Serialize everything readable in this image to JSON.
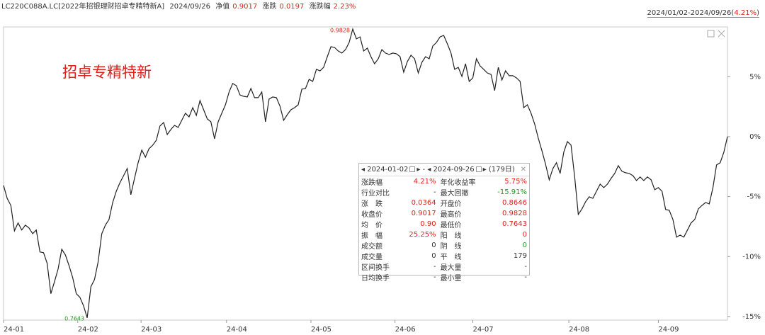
{
  "header": {
    "code": "LC220C088A.LC[2022年招银理财招卓专精特新A]",
    "date": "2024/09/26",
    "nav_label": "净值",
    "nav": "0.9017",
    "change_label": "涨跌",
    "change": "0.0197",
    "pct_label": "涨跌幅",
    "pct": "2.23%",
    "range_prefix": "2024/01/02-2024/09/26(",
    "range_change": "4.21%",
    "range_suffix": ")"
  },
  "chart_data": {
    "type": "line",
    "annotation": "招卓专精特新",
    "max_label": "0.9828",
    "min_label": "0.7643",
    "color": "#222222",
    "values": [
      -4.07,
      -5.14,
      -5.73,
      -7.85,
      -7.2,
      -7.79,
      -7.38,
      -7.61,
      -8.09,
      -7.79,
      -9.62,
      -9.68,
      -10.57,
      -13.1,
      -12.1,
      -11.04,
      -9.39,
      -9.86,
      -10.74,
      -11.75,
      -13.1,
      -13.4,
      -14.11,
      -15.11,
      -12.51,
      -11.92,
      -10.45,
      -8.09,
      -7.38,
      -6.91,
      -5.49,
      -4.55,
      -3.84,
      -3.25,
      -2.66,
      -4.84,
      -3.48,
      -2.18,
      -1.12,
      -1.71,
      -1.0,
      -0.71,
      -0.3,
      0.89,
      1.18,
      0.18,
      0.59,
      0.94,
      0.77,
      1.36,
      1.95,
      1.65,
      2.42,
      1.77,
      3.01,
      2.24,
      1.48,
      1.24,
      -0.18,
      1.24,
      1.95,
      2.66,
      3.72,
      4.43,
      4.25,
      3.48,
      3.36,
      3.31,
      4.01,
      3.25,
      3.25,
      3.72,
      1.24,
      3.13,
      3.31,
      3.25,
      2.54,
      1.36,
      1.83,
      2.24,
      2.42,
      2.66,
      3.96,
      4.01,
      4.78,
      4.6,
      5.61,
      5.49,
      5.78,
      6.67,
      7.5,
      7.44,
      7.14,
      6.97,
      7.26,
      7.85,
      8.97,
      8.15,
      8.32,
      7.14,
      7.38,
      6.67,
      6.08,
      6.49,
      7.26,
      6.97,
      6.85,
      6.97,
      6.91,
      6.67,
      5.37,
      6.26,
      6.79,
      6.49,
      5.31,
      6.2,
      6.67,
      6.49,
      7.56,
      7.85,
      8.32,
      8.44,
      7.73,
      6.97,
      5.61,
      5.78,
      5.02,
      6.08,
      4.6,
      4.9,
      6.49,
      5.9,
      5.61,
      5.31,
      5.19,
      3.84,
      5.78,
      4.72,
      5.49,
      5.08,
      5.08,
      4.9,
      4.6,
      2.42,
      2.66,
      1.95,
      1.06,
      -0.12,
      -1.18,
      -2.3,
      -3.6,
      -2.66,
      -2.18,
      -3.07,
      -1.3,
      -0.41,
      -0.71,
      -3.36,
      -6.49,
      -6.02,
      -5.43,
      -5.02,
      -5.14,
      -4.55,
      -3.96,
      -4.25,
      -3.96,
      -3.48,
      -3.07,
      -2.42,
      -2.89,
      -3.01,
      -3.07,
      -3.25,
      -3.66,
      -3.36,
      -3.66,
      -3.36,
      -3.6,
      -4.43,
      -4.25,
      -4.55,
      -6.08,
      -6.14,
      -6.91,
      -8.38,
      -8.21,
      -8.38,
      -7.79,
      -7.2,
      -6.91,
      -6.02,
      -5.73,
      -5.49,
      -5.61,
      -4.25,
      -2.36,
      -2.18,
      -1.3,
      0.0
    ],
    "xlim": [
      0,
      199
    ],
    "xticks": [
      {
        "value": 0,
        "label": "24-01"
      },
      {
        "value": 20.4,
        "label": "24-02"
      },
      {
        "value": 37.8,
        "label": "24-03"
      },
      {
        "value": 61.3,
        "label": "24-04"
      },
      {
        "value": 84.5,
        "label": "24-05"
      },
      {
        "value": 107.6,
        "label": "24-06"
      },
      {
        "value": 129,
        "label": "24-07"
      },
      {
        "value": 155.4,
        "label": "24-08"
      },
      {
        "value": 180,
        "label": "24-09"
      }
    ],
    "ylim": [
      -15.3,
      9.15
    ],
    "yticks": [
      {
        "value": 5,
        "label": "5%"
      },
      {
        "value": 0,
        "label": "0%"
      },
      {
        "value": -5,
        "label": "-5%"
      },
      {
        "value": -10,
        "label": "-10%"
      },
      {
        "value": -15,
        "label": "-15%"
      }
    ],
    "grid": false
  },
  "stats_panel": {
    "start": "2024-01-02",
    "sep": "-",
    "end": "2024-09-26",
    "days": "(179日)",
    "rows": [
      [
        "涨跌幅",
        "4.21%",
        "年化收益率",
        "5.75%"
      ],
      [
        "行业对比",
        "-",
        "最大回撤",
        "-15.91%"
      ],
      [
        "涨　跌",
        "0.0364",
        "开盘价",
        "0.8646"
      ],
      [
        "收盘价",
        "0.9017",
        "最高价",
        "0.9828"
      ],
      [
        "均　价",
        "0.90",
        "最低价",
        "0.7643"
      ],
      [
        "振　幅",
        "25.25%",
        "阳　线",
        "0"
      ],
      [
        "成交额",
        "0",
        "阴　线",
        "0"
      ],
      [
        "成交量",
        "0",
        "平　线",
        "179"
      ],
      [
        "区间换手",
        "-",
        "最大量",
        "-"
      ],
      [
        "日均换手",
        "-",
        "最小量",
        "-"
      ]
    ]
  }
}
